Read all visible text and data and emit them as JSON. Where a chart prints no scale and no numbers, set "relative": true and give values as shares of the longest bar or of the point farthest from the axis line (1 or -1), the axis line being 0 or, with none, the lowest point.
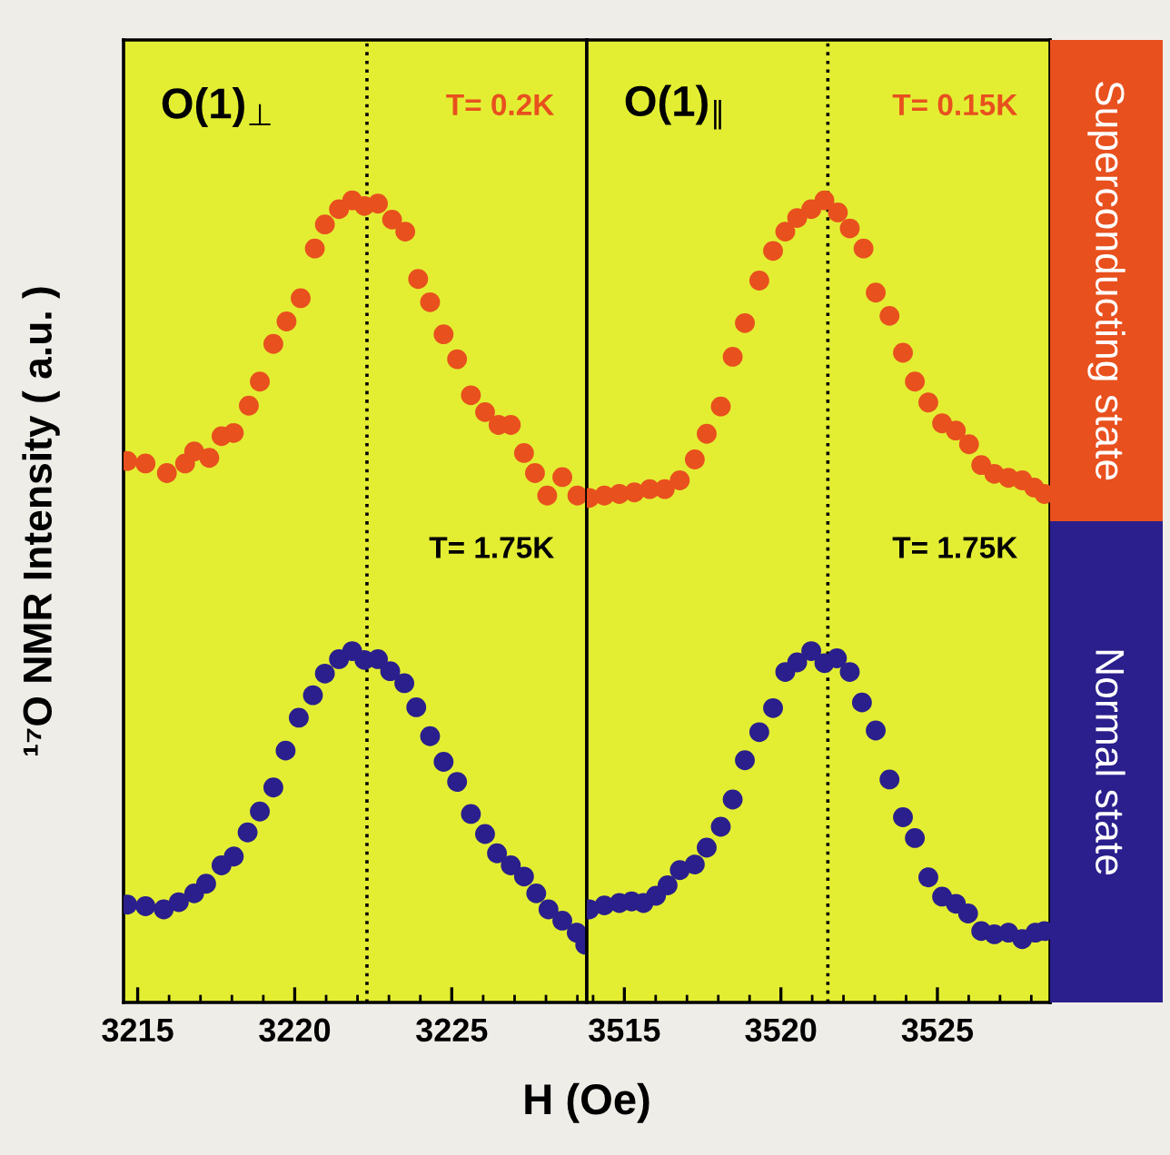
{
  "chart_data": [
    {
      "type": "scatter",
      "title": "O(1)$_{⊥}$",
      "xlabel": "H (Oe)",
      "ylabel": "¹⁷O NMR Intensity ( a.u. )",
      "relative": true,
      "marker": "circle",
      "tick_labels": "x",
      "xlim": [
        3214.55,
        3229.3
      ],
      "xticks": [
        3215,
        3220,
        3225
      ],
      "annotations": [
        "T= 0.2K",
        "T= 1.75K"
      ],
      "ref_lines": [
        {
          "axis": "x",
          "value": 3222.3,
          "color": "#000000",
          "line_style": "dotted"
        }
      ],
      "series": [
        {
          "color": "#e8501e",
          "x": [
            3214.67,
            3215.25,
            3215.93,
            3216.51,
            3216.8,
            3217.28,
            3217.67,
            3218.06,
            3218.54,
            3218.89,
            3219.32,
            3219.74,
            3220.19,
            3220.64,
            3220.96,
            3221.41,
            3221.83,
            3222.22,
            3222.65,
            3223.1,
            3223.52,
            3223.93,
            3224.31,
            3224.74,
            3225.17,
            3225.61,
            3226.06,
            3226.49,
            3226.88,
            3227.3,
            3227.65,
            3228.04,
            3228.52,
            3229.0
          ],
          "values": [
            0.675,
            0.672,
            0.66,
            0.672,
            0.687,
            0.679,
            0.706,
            0.71,
            0.744,
            0.774,
            0.821,
            0.849,
            0.878,
            0.94,
            0.97,
            0.989,
            1.0,
            0.993,
            0.996,
            0.976,
            0.961,
            0.902,
            0.873,
            0.833,
            0.802,
            0.757,
            0.736,
            0.72,
            0.72,
            0.685,
            0.66,
            0.632,
            0.655,
            0.632
          ]
        },
        {
          "color": "#2a1f8c",
          "x": [
            3214.67,
            3215.25,
            3215.83,
            3216.31,
            3216.8,
            3217.18,
            3217.67,
            3218.06,
            3218.5,
            3218.89,
            3219.32,
            3219.71,
            3220.13,
            3220.58,
            3220.96,
            3221.41,
            3221.83,
            3222.22,
            3222.65,
            3223.04,
            3223.49,
            3223.87,
            3224.31,
            3224.74,
            3225.17,
            3225.61,
            3226.06,
            3226.44,
            3226.88,
            3227.3,
            3227.69,
            3228.08,
            3228.52,
            3228.98,
            3229.25
          ],
          "values": [
            0.122,
            0.12,
            0.116,
            0.125,
            0.136,
            0.148,
            0.171,
            0.182,
            0.212,
            0.238,
            0.268,
            0.314,
            0.355,
            0.383,
            0.41,
            0.428,
            0.438,
            0.427,
            0.428,
            0.413,
            0.398,
            0.368,
            0.332,
            0.3,
            0.275,
            0.235,
            0.21,
            0.186,
            0.171,
            0.157,
            0.136,
            0.116,
            0.102,
            0.087,
            0.072
          ]
        }
      ]
    },
    {
      "type": "scatter",
      "title": "O(1)$_{∥}$",
      "relative": true,
      "marker": "circle",
      "tick_labels": "x",
      "legend": "right",
      "xlim": [
        3513.8,
        3528.6
      ],
      "xticks": [
        3515,
        3520,
        3525
      ],
      "annotations": [
        "T= 0.15K",
        "T= 1.75K"
      ],
      "ref_lines": [
        {
          "axis": "x",
          "value": 3521.5,
          "color": "#000000",
          "line_style": "dotted"
        }
      ],
      "series": [
        {
          "name": "Superconducting state",
          "color": "#e8501e",
          "x": [
            3513.88,
            3514.36,
            3514.84,
            3515.32,
            3515.81,
            3516.29,
            3516.77,
            3517.25,
            3517.63,
            3518.08,
            3518.46,
            3518.85,
            3519.31,
            3519.75,
            3520.14,
            3520.52,
            3520.97,
            3521.39,
            3521.82,
            3522.2,
            3522.64,
            3523.03,
            3523.47,
            3523.9,
            3524.28,
            3524.71,
            3525.15,
            3525.59,
            3526.01,
            3526.4,
            3526.82,
            3527.27,
            3527.71,
            3528.09,
            3528.42
          ],
          "values": [
            0.629,
            0.632,
            0.634,
            0.636,
            0.64,
            0.64,
            0.651,
            0.677,
            0.709,
            0.743,
            0.805,
            0.847,
            0.9,
            0.937,
            0.961,
            0.978,
            0.989,
            1.0,
            0.985,
            0.965,
            0.94,
            0.885,
            0.856,
            0.81,
            0.774,
            0.748,
            0.722,
            0.713,
            0.696,
            0.67,
            0.659,
            0.654,
            0.651,
            0.642,
            0.634
          ]
        },
        {
          "name": "Normal state",
          "color": "#2a1f8c",
          "x": [
            3513.88,
            3514.36,
            3514.84,
            3515.23,
            3515.61,
            3516.01,
            3516.38,
            3516.77,
            3517.25,
            3517.63,
            3518.08,
            3518.46,
            3518.85,
            3519.31,
            3519.75,
            3520.14,
            3520.52,
            3520.97,
            3521.39,
            3521.79,
            3522.2,
            3522.59,
            3523.03,
            3523.47,
            3523.9,
            3524.28,
            3524.71,
            3525.15,
            3525.59,
            3525.98,
            3526.4,
            3526.82,
            3527.27,
            3527.71,
            3528.13,
            3528.42
          ],
          "values": [
            0.116,
            0.121,
            0.124,
            0.126,
            0.124,
            0.133,
            0.146,
            0.165,
            0.172,
            0.193,
            0.219,
            0.253,
            0.302,
            0.337,
            0.367,
            0.412,
            0.424,
            0.438,
            0.423,
            0.429,
            0.412,
            0.374,
            0.339,
            0.278,
            0.231,
            0.205,
            0.156,
            0.132,
            0.123,
            0.111,
            0.089,
            0.085,
            0.087,
            0.079,
            0.087,
            0.089
          ]
        }
      ]
    }
  ]
}
